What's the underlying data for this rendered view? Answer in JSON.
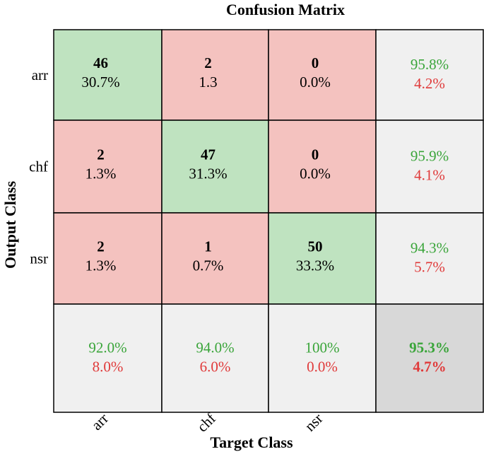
{
  "chart_data": {
    "type": "heatmap",
    "title": "Confusion Matrix",
    "xlabel": "Target Class",
    "ylabel": "Output Class",
    "row_labels": [
      "arr",
      "chf",
      "nsr"
    ],
    "col_labels": [
      "arr",
      "chf",
      "nsr"
    ],
    "counts": [
      [
        46,
        2,
        0
      ],
      [
        2,
        47,
        0
      ],
      [
        2,
        1,
        50
      ]
    ],
    "percents": [
      [
        "30.7%",
        "1.3",
        "0.0%"
      ],
      [
        "1.3%",
        "31.3%",
        "0.0%"
      ],
      [
        "1.3%",
        "0.7%",
        "33.3%"
      ]
    ],
    "row_summary": [
      {
        "correct": "95.8%",
        "error": "4.2%"
      },
      {
        "correct": "95.9%",
        "error": "4.1%"
      },
      {
        "correct": "94.3%",
        "error": "5.7%"
      }
    ],
    "col_summary": [
      {
        "correct": "92.0%",
        "error": "8.0%"
      },
      {
        "correct": "94.0%",
        "error": "6.0%"
      },
      {
        "correct": "100%",
        "error": "0.0%"
      }
    ],
    "overall": {
      "correct": "95.3%",
      "error": "4.7%"
    }
  },
  "colors": {
    "diagonal": "#bfe3c0",
    "off_diagonal": "#f4c2bf",
    "summary": "#f0f0f0",
    "overall": "#d8d8d8",
    "correct_text": "#3aa53a",
    "error_text": "#e03a3a",
    "border": "#000000"
  }
}
